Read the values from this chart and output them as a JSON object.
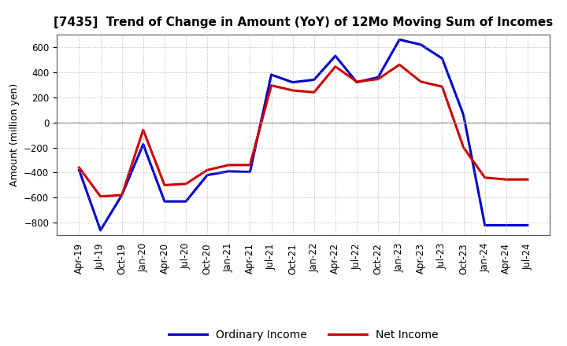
{
  "title": "[7435]  Trend of Change in Amount (YoY) of 12Mo Moving Sum of Incomes",
  "ylabel": "Amount (million yen)",
  "x_labels": [
    "Apr-19",
    "Jul-19",
    "Oct-19",
    "Jan-20",
    "Apr-20",
    "Jul-20",
    "Oct-20",
    "Jan-21",
    "Apr-21",
    "Jul-21",
    "Oct-21",
    "Jan-22",
    "Apr-22",
    "Jul-22",
    "Oct-22",
    "Jan-23",
    "Apr-23",
    "Jul-23",
    "Oct-23",
    "Jan-24",
    "Apr-24",
    "Jul-24"
  ],
  "ordinary_income": [
    -380,
    -860,
    -580,
    -175,
    -630,
    -630,
    -420,
    -390,
    -395,
    380,
    320,
    340,
    530,
    320,
    360,
    660,
    620,
    510,
    60,
    -820,
    -820,
    -820
  ],
  "net_income": [
    -360,
    -590,
    -580,
    -60,
    -500,
    -490,
    -380,
    -340,
    -340,
    295,
    255,
    240,
    445,
    325,
    345,
    460,
    325,
    285,
    -200,
    -440,
    -455,
    -455
  ],
  "ordinary_color": "#0000cc",
  "net_color": "#cc0000",
  "ylim": [
    -900,
    700
  ],
  "yticks": [
    -800,
    -600,
    -400,
    -200,
    0,
    200,
    400,
    600
  ],
  "background_color": "#ffffff",
  "plot_bg_color": "#f0f0f0",
  "legend_labels": [
    "Ordinary Income",
    "Net Income"
  ],
  "title_fontsize": 11,
  "axis_label_fontsize": 9,
  "tick_fontsize": 8.5
}
